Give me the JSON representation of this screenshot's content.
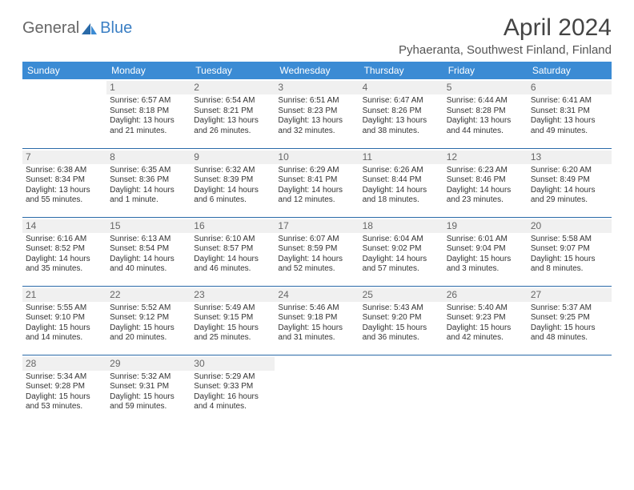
{
  "logo": {
    "part1": "General",
    "part2": "Blue"
  },
  "title": "April 2024",
  "location": "Pyhaeranta, Southwest Finland, Finland",
  "weekday_headers": [
    "Sunday",
    "Monday",
    "Tuesday",
    "Wednesday",
    "Thursday",
    "Friday",
    "Saturday"
  ],
  "colors": {
    "header_bg": "#3b8bd4",
    "header_text": "#ffffff",
    "border": "#2a6aa8",
    "daynum_bg": "#f0f0f0",
    "text": "#333333",
    "logo_gray": "#666666",
    "logo_blue": "#3b7fc4"
  },
  "grid": [
    [
      {
        "day": "",
        "lines": []
      },
      {
        "day": "1",
        "lines": [
          "Sunrise: 6:57 AM",
          "Sunset: 8:18 PM",
          "Daylight: 13 hours and 21 minutes."
        ]
      },
      {
        "day": "2",
        "lines": [
          "Sunrise: 6:54 AM",
          "Sunset: 8:21 PM",
          "Daylight: 13 hours and 26 minutes."
        ]
      },
      {
        "day": "3",
        "lines": [
          "Sunrise: 6:51 AM",
          "Sunset: 8:23 PM",
          "Daylight: 13 hours and 32 minutes."
        ]
      },
      {
        "day": "4",
        "lines": [
          "Sunrise: 6:47 AM",
          "Sunset: 8:26 PM",
          "Daylight: 13 hours and 38 minutes."
        ]
      },
      {
        "day": "5",
        "lines": [
          "Sunrise: 6:44 AM",
          "Sunset: 8:28 PM",
          "Daylight: 13 hours and 44 minutes."
        ]
      },
      {
        "day": "6",
        "lines": [
          "Sunrise: 6:41 AM",
          "Sunset: 8:31 PM",
          "Daylight: 13 hours and 49 minutes."
        ]
      }
    ],
    [
      {
        "day": "7",
        "lines": [
          "Sunrise: 6:38 AM",
          "Sunset: 8:34 PM",
          "Daylight: 13 hours and 55 minutes."
        ]
      },
      {
        "day": "8",
        "lines": [
          "Sunrise: 6:35 AM",
          "Sunset: 8:36 PM",
          "Daylight: 14 hours and 1 minute."
        ]
      },
      {
        "day": "9",
        "lines": [
          "Sunrise: 6:32 AM",
          "Sunset: 8:39 PM",
          "Daylight: 14 hours and 6 minutes."
        ]
      },
      {
        "day": "10",
        "lines": [
          "Sunrise: 6:29 AM",
          "Sunset: 8:41 PM",
          "Daylight: 14 hours and 12 minutes."
        ]
      },
      {
        "day": "11",
        "lines": [
          "Sunrise: 6:26 AM",
          "Sunset: 8:44 PM",
          "Daylight: 14 hours and 18 minutes."
        ]
      },
      {
        "day": "12",
        "lines": [
          "Sunrise: 6:23 AM",
          "Sunset: 8:46 PM",
          "Daylight: 14 hours and 23 minutes."
        ]
      },
      {
        "day": "13",
        "lines": [
          "Sunrise: 6:20 AM",
          "Sunset: 8:49 PM",
          "Daylight: 14 hours and 29 minutes."
        ]
      }
    ],
    [
      {
        "day": "14",
        "lines": [
          "Sunrise: 6:16 AM",
          "Sunset: 8:52 PM",
          "Daylight: 14 hours and 35 minutes."
        ]
      },
      {
        "day": "15",
        "lines": [
          "Sunrise: 6:13 AM",
          "Sunset: 8:54 PM",
          "Daylight: 14 hours and 40 minutes."
        ]
      },
      {
        "day": "16",
        "lines": [
          "Sunrise: 6:10 AM",
          "Sunset: 8:57 PM",
          "Daylight: 14 hours and 46 minutes."
        ]
      },
      {
        "day": "17",
        "lines": [
          "Sunrise: 6:07 AM",
          "Sunset: 8:59 PM",
          "Daylight: 14 hours and 52 minutes."
        ]
      },
      {
        "day": "18",
        "lines": [
          "Sunrise: 6:04 AM",
          "Sunset: 9:02 PM",
          "Daylight: 14 hours and 57 minutes."
        ]
      },
      {
        "day": "19",
        "lines": [
          "Sunrise: 6:01 AM",
          "Sunset: 9:04 PM",
          "Daylight: 15 hours and 3 minutes."
        ]
      },
      {
        "day": "20",
        "lines": [
          "Sunrise: 5:58 AM",
          "Sunset: 9:07 PM",
          "Daylight: 15 hours and 8 minutes."
        ]
      }
    ],
    [
      {
        "day": "21",
        "lines": [
          "Sunrise: 5:55 AM",
          "Sunset: 9:10 PM",
          "Daylight: 15 hours and 14 minutes."
        ]
      },
      {
        "day": "22",
        "lines": [
          "Sunrise: 5:52 AM",
          "Sunset: 9:12 PM",
          "Daylight: 15 hours and 20 minutes."
        ]
      },
      {
        "day": "23",
        "lines": [
          "Sunrise: 5:49 AM",
          "Sunset: 9:15 PM",
          "Daylight: 15 hours and 25 minutes."
        ]
      },
      {
        "day": "24",
        "lines": [
          "Sunrise: 5:46 AM",
          "Sunset: 9:18 PM",
          "Daylight: 15 hours and 31 minutes."
        ]
      },
      {
        "day": "25",
        "lines": [
          "Sunrise: 5:43 AM",
          "Sunset: 9:20 PM",
          "Daylight: 15 hours and 36 minutes."
        ]
      },
      {
        "day": "26",
        "lines": [
          "Sunrise: 5:40 AM",
          "Sunset: 9:23 PM",
          "Daylight: 15 hours and 42 minutes."
        ]
      },
      {
        "day": "27",
        "lines": [
          "Sunrise: 5:37 AM",
          "Sunset: 9:25 PM",
          "Daylight: 15 hours and 48 minutes."
        ]
      }
    ],
    [
      {
        "day": "28",
        "lines": [
          "Sunrise: 5:34 AM",
          "Sunset: 9:28 PM",
          "Daylight: 15 hours and 53 minutes."
        ]
      },
      {
        "day": "29",
        "lines": [
          "Sunrise: 5:32 AM",
          "Sunset: 9:31 PM",
          "Daylight: 15 hours and 59 minutes."
        ]
      },
      {
        "day": "30",
        "lines": [
          "Sunrise: 5:29 AM",
          "Sunset: 9:33 PM",
          "Daylight: 16 hours and 4 minutes."
        ]
      },
      {
        "day": "",
        "lines": []
      },
      {
        "day": "",
        "lines": []
      },
      {
        "day": "",
        "lines": []
      },
      {
        "day": "",
        "lines": []
      }
    ]
  ]
}
